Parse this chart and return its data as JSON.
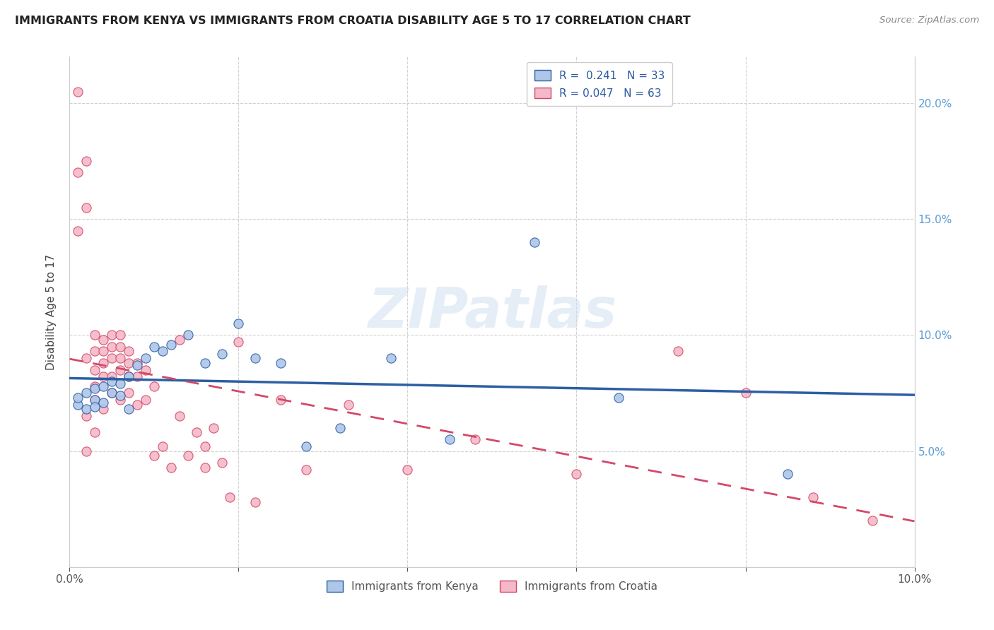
{
  "title": "IMMIGRANTS FROM KENYA VS IMMIGRANTS FROM CROATIA DISABILITY AGE 5 TO 17 CORRELATION CHART",
  "source": "Source: ZipAtlas.com",
  "ylabel": "Disability Age 5 to 17",
  "xlim": [
    0.0,
    0.1
  ],
  "ylim": [
    0.0,
    0.22
  ],
  "kenya_color": "#aec6e8",
  "kenya_line_color": "#2c5fa3",
  "croatia_color": "#f4b8c8",
  "croatia_line_color": "#d44868",
  "watermark": "ZIPatlas",
  "legend_R_kenya": "R =  0.241",
  "legend_N_kenya": "N = 33",
  "legend_R_croatia": "R = 0.047",
  "legend_N_croatia": "N = 63",
  "kenya_x": [
    0.001,
    0.001,
    0.002,
    0.002,
    0.003,
    0.003,
    0.003,
    0.004,
    0.004,
    0.005,
    0.005,
    0.006,
    0.006,
    0.007,
    0.007,
    0.008,
    0.009,
    0.01,
    0.011,
    0.012,
    0.014,
    0.016,
    0.018,
    0.02,
    0.022,
    0.025,
    0.028,
    0.032,
    0.038,
    0.045,
    0.055,
    0.065,
    0.085
  ],
  "kenya_y": [
    0.07,
    0.073,
    0.068,
    0.075,
    0.072,
    0.077,
    0.069,
    0.078,
    0.071,
    0.075,
    0.08,
    0.074,
    0.079,
    0.068,
    0.082,
    0.087,
    0.09,
    0.095,
    0.093,
    0.096,
    0.1,
    0.088,
    0.092,
    0.105,
    0.09,
    0.088,
    0.052,
    0.06,
    0.09,
    0.055,
    0.14,
    0.073,
    0.04
  ],
  "croatia_x": [
    0.001,
    0.001,
    0.001,
    0.002,
    0.002,
    0.002,
    0.002,
    0.002,
    0.003,
    0.003,
    0.003,
    0.003,
    0.003,
    0.003,
    0.004,
    0.004,
    0.004,
    0.004,
    0.004,
    0.005,
    0.005,
    0.005,
    0.005,
    0.005,
    0.006,
    0.006,
    0.006,
    0.006,
    0.006,
    0.007,
    0.007,
    0.007,
    0.007,
    0.008,
    0.008,
    0.008,
    0.009,
    0.009,
    0.01,
    0.01,
    0.011,
    0.012,
    0.013,
    0.013,
    0.014,
    0.015,
    0.016,
    0.016,
    0.017,
    0.018,
    0.019,
    0.02,
    0.022,
    0.025,
    0.028,
    0.033,
    0.04,
    0.048,
    0.06,
    0.072,
    0.08,
    0.088,
    0.095
  ],
  "croatia_y": [
    0.205,
    0.17,
    0.145,
    0.175,
    0.155,
    0.09,
    0.065,
    0.05,
    0.1,
    0.093,
    0.085,
    0.078,
    0.072,
    0.058,
    0.098,
    0.093,
    0.088,
    0.082,
    0.068,
    0.1,
    0.095,
    0.09,
    0.082,
    0.075,
    0.1,
    0.095,
    0.09,
    0.085,
    0.072,
    0.093,
    0.088,
    0.082,
    0.075,
    0.088,
    0.082,
    0.07,
    0.085,
    0.072,
    0.078,
    0.048,
    0.052,
    0.043,
    0.098,
    0.065,
    0.048,
    0.058,
    0.043,
    0.052,
    0.06,
    0.045,
    0.03,
    0.097,
    0.028,
    0.072,
    0.042,
    0.07,
    0.042,
    0.055,
    0.04,
    0.093,
    0.075,
    0.03,
    0.02
  ]
}
